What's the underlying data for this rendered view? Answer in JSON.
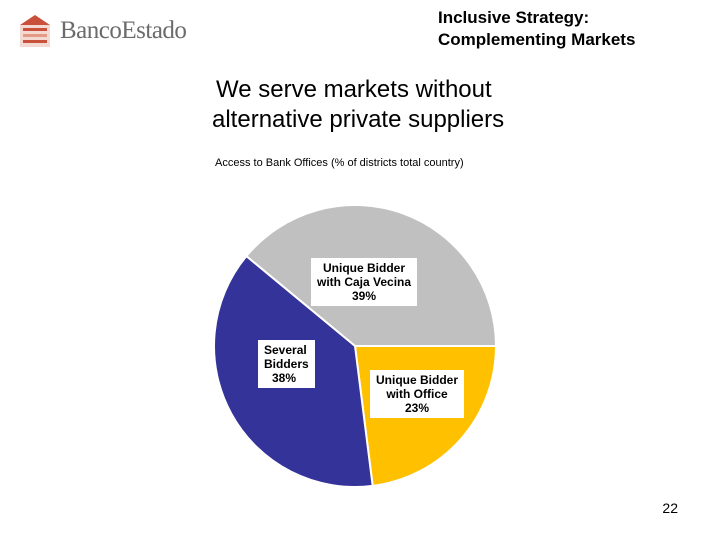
{
  "header": {
    "brand": "BancoEstado",
    "title_lines": [
      "Inclusive Strategy:",
      "Complementing Markets"
    ]
  },
  "main": {
    "title_lines": [
      "We serve markets without",
      "alternative private suppliers"
    ],
    "subtitle": "Access to Bank Offices (% of districts total country)"
  },
  "chart_data": {
    "type": "pie",
    "title": "",
    "slices": [
      {
        "label_lines": [
          "Unique Bidder",
          "with Caja Vecina",
          "39%"
        ],
        "value": 39,
        "color": "#c0c0c0"
      },
      {
        "label_lines": [
          "Unique Bidder",
          "with Office",
          "23%"
        ],
        "value": 23,
        "color": "#ffc000"
      },
      {
        "label_lines": [
          "Several",
          "Bidders",
          "38%"
        ],
        "value": 38,
        "color": "#333399"
      }
    ]
  },
  "footer": {
    "page_number": "22"
  },
  "colors": {
    "logo_accent": "#c9503a",
    "logo_gray": "#6b6b6b"
  }
}
